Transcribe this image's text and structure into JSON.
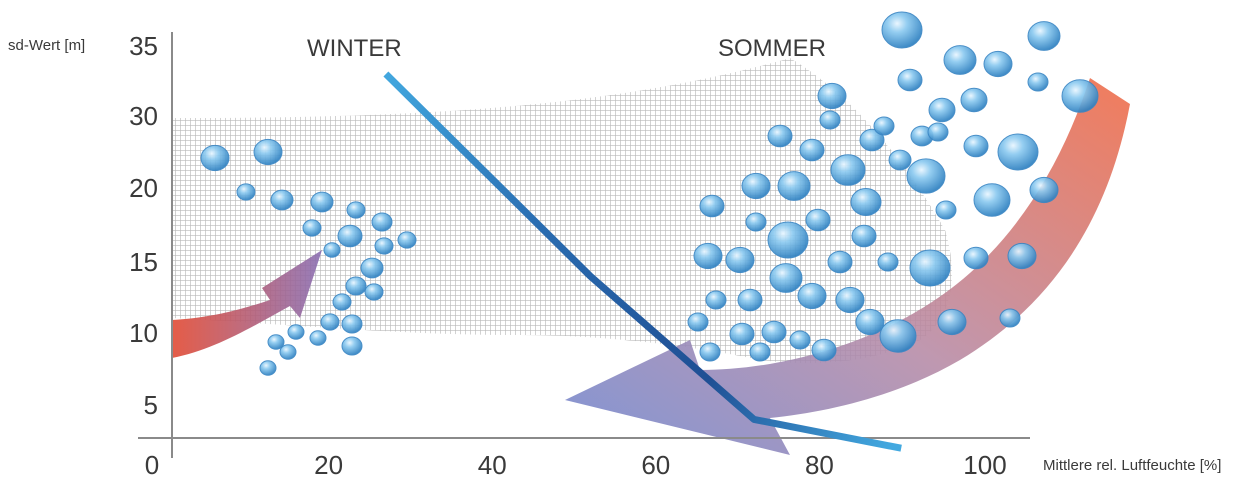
{
  "chart_data": {
    "type": "line",
    "xlabel": "Mittlere rel. Luftfeuchte [%]",
    "ylabel": "sd-Wert [m]",
    "xlim": [
      0,
      100
    ],
    "ylim": [
      2,
      35
    ],
    "x_ticks": [
      "0",
      "20",
      "40",
      "60",
      "80",
      "100"
    ],
    "y_ticks": [
      "5",
      "10",
      "15",
      "20",
      "30",
      "35"
    ],
    "annotations": [
      "WINTER",
      "SOMMER"
    ],
    "series": [
      {
        "x": [
          27,
          52,
          72,
          90
        ],
        "y": [
          33,
          14,
          4,
          2
        ],
        "color": "#2f9bd6"
      }
    ],
    "grid": false,
    "colors": {
      "line_light": "#43a9e0",
      "line_dark": "#1f4f94",
      "arrow_warm": "#e85a3c",
      "arrow_cool": "#6f86cf",
      "mesh": "#b8b8b8",
      "drop": "#4a9fd8"
    }
  }
}
